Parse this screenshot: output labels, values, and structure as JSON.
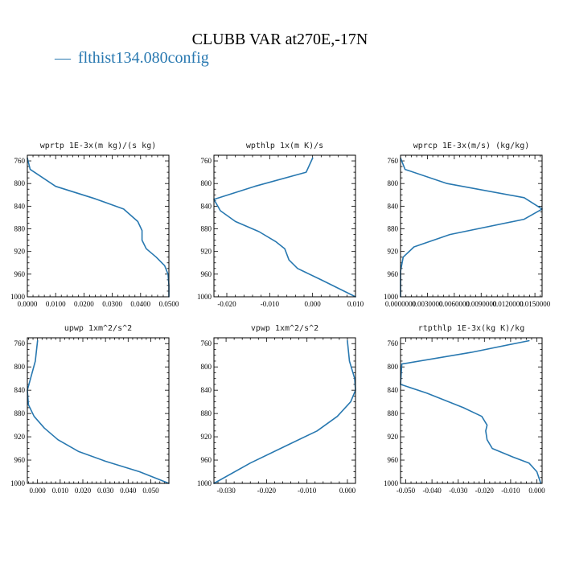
{
  "figure": {
    "title": "CLUBB VAR at270E,-17N",
    "legend": [
      {
        "label": "flthist134.080config",
        "symbol": "—",
        "color": "#2878b0"
      }
    ]
  },
  "chart_data": [
    {
      "type": "line",
      "title": "wprtp  1E-3x(m kg)/(s kg)",
      "xlim": [
        0,
        0.05
      ],
      "ylim": [
        1000,
        750
      ],
      "xticks": [
        0,
        0.01,
        0.02,
        0.03,
        0.04,
        0.05
      ],
      "xticklabels": [
        "0.0000",
        "0.0100",
        "0.0200",
        "0.0300",
        "0.0400",
        "0.0500"
      ],
      "yticks": [
        760,
        800,
        840,
        880,
        920,
        960,
        1000
      ],
      "series": [
        {
          "color": "#2878b0",
          "x": [
            0.0,
            0.001,
            0.01,
            0.024,
            0.034,
            0.039,
            0.0405,
            0.0405,
            0.042,
            0.0455,
            0.0485,
            0.0497,
            0.05,
            0.05
          ],
          "y": [
            755,
            775,
            805,
            827,
            845,
            867,
            883,
            900,
            915,
            930,
            945,
            960,
            980,
            1000
          ]
        }
      ]
    },
    {
      "type": "line",
      "title": "wpthlp  1x(m K)/s",
      "xlim": [
        -0.023,
        0.01
      ],
      "ylim": [
        1000,
        750
      ],
      "xticks": [
        -0.02,
        -0.01,
        0.0,
        0.01
      ],
      "xticklabels": [
        "-0.020",
        "-0.010",
        "0.000",
        "0.010"
      ],
      "yticks": [
        760,
        800,
        840,
        880,
        920,
        960,
        1000
      ],
      "series": [
        {
          "color": "#2878b0",
          "x": [
            0.0,
            -0.0015,
            -0.0135,
            -0.023,
            -0.0215,
            -0.018,
            -0.0125,
            -0.0085,
            -0.0065,
            -0.0055,
            -0.0035,
            0.002,
            0.01
          ],
          "y": [
            755,
            780,
            805,
            828,
            848,
            867,
            885,
            903,
            915,
            935,
            950,
            970,
            1000
          ]
        }
      ]
    },
    {
      "type": "line",
      "title": "wprcp  1E-3x(m/s) (kg/kg)",
      "xlim": [
        0,
        0.0158
      ],
      "ylim": [
        1000,
        750
      ],
      "xticks": [
        0,
        0.003,
        0.006,
        0.009,
        0.012,
        0.015
      ],
      "xticklabels": [
        "0.0000000",
        "0.0030000",
        "0.0060000",
        "0.0090000",
        "0.0120000",
        "0.0150000"
      ],
      "yticks": [
        760,
        800,
        840,
        880,
        920,
        960,
        1000
      ],
      "series": [
        {
          "color": "#2878b0",
          "x": [
            0.0,
            0.0005,
            0.0052,
            0.0138,
            0.0158,
            0.0138,
            0.0055,
            0.0015,
            0.0003,
            0.0,
            0.0
          ],
          "y": [
            755,
            775,
            800,
            825,
            845,
            863,
            890,
            912,
            930,
            955,
            1000
          ]
        }
      ]
    },
    {
      "type": "line",
      "title": "upwp  1xm^2/s^2",
      "xlim": [
        -0.0045,
        0.058
      ],
      "ylim": [
        1000,
        750
      ],
      "xticks": [
        0.0,
        0.01,
        0.02,
        0.03,
        0.04,
        0.05
      ],
      "xticklabels": [
        "0.000",
        "0.010",
        "0.020",
        "0.030",
        "0.040",
        "0.050"
      ],
      "yticks": [
        760,
        800,
        840,
        880,
        920,
        960,
        1000
      ],
      "series": [
        {
          "color": "#2878b0",
          "x": [
            0.0,
            -0.001,
            -0.0045,
            -0.004,
            -0.0015,
            0.003,
            0.009,
            0.018,
            0.03,
            0.045,
            0.058
          ],
          "y": [
            755,
            790,
            840,
            865,
            885,
            905,
            925,
            945,
            962,
            980,
            1000
          ]
        }
      ]
    },
    {
      "type": "line",
      "title": "vpwp  1xm^2/s^2",
      "xlim": [
        -0.033,
        0.002
      ],
      "ylim": [
        1000,
        750
      ],
      "xticks": [
        -0.03,
        -0.02,
        -0.01,
        0.0
      ],
      "xticklabels": [
        "-0.030",
        "-0.020",
        "-0.010",
        "0.000"
      ],
      "yticks": [
        760,
        800,
        840,
        880,
        920,
        960,
        1000
      ],
      "series": [
        {
          "color": "#2878b0",
          "x": [
            0.0,
            0.0005,
            0.0018,
            0.002,
            0.0008,
            -0.0025,
            -0.0075,
            -0.015,
            -0.024,
            -0.033
          ],
          "y": [
            755,
            790,
            820,
            840,
            860,
            885,
            910,
            935,
            965,
            1000
          ]
        }
      ]
    },
    {
      "type": "line",
      "title": "rtpthlp  1E-3x(kg K)/kg",
      "xlim": [
        -0.052,
        0.002
      ],
      "ylim": [
        1000,
        750
      ],
      "xticks": [
        -0.05,
        -0.04,
        -0.03,
        -0.02,
        -0.01,
        0.0
      ],
      "xticklabels": [
        "-0.050",
        "-0.040",
        "-0.030",
        "-0.020",
        "-0.010",
        "0.000"
      ],
      "yticks": [
        760,
        800,
        840,
        880,
        920,
        960,
        1000
      ],
      "series": [
        {
          "color": "#2878b0",
          "x": [
            -0.003,
            -0.025,
            -0.0515,
            -0.052,
            -0.042,
            -0.028,
            -0.021,
            -0.019,
            -0.0195,
            -0.019,
            -0.017,
            -0.009,
            -0.003,
            0.0,
            0.0015
          ],
          "y": [
            755,
            775,
            795,
            830,
            845,
            870,
            885,
            900,
            910,
            925,
            940,
            955,
            965,
            980,
            1000
          ]
        }
      ]
    }
  ]
}
